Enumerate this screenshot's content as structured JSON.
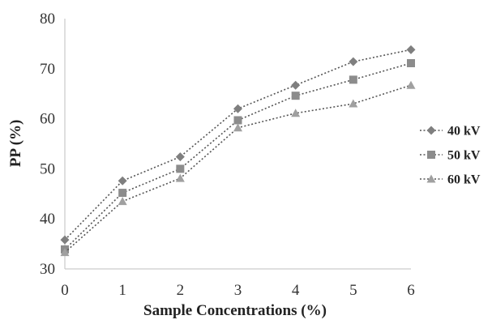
{
  "chart_data": {
    "type": "line",
    "title": "",
    "xlabel": "Sample Concentrations (%)",
    "ylabel": "PP (%)",
    "x": [
      0,
      1,
      2,
      3,
      4,
      5,
      6
    ],
    "xlim": [
      0,
      6
    ],
    "ylim": [
      30,
      80
    ],
    "yticks": [
      30,
      40,
      50,
      60,
      70,
      80
    ],
    "grid": false,
    "legend_position": "right",
    "series": [
      {
        "name": "40 kV",
        "marker": "diamond",
        "color": "#7f7f7f",
        "values": [
          35.8,
          47.6,
          52.4,
          62.0,
          66.7,
          71.4,
          73.8
        ]
      },
      {
        "name": "50 kV",
        "marker": "square",
        "color": "#8c8c8c",
        "values": [
          33.9,
          45.2,
          50.0,
          59.7,
          64.6,
          67.8,
          71.1
        ]
      },
      {
        "name": "60 kV",
        "marker": "triangle",
        "color": "#a0a0a0",
        "values": [
          33.3,
          43.5,
          48.1,
          58.2,
          61.1,
          63.0,
          66.7
        ]
      }
    ]
  }
}
